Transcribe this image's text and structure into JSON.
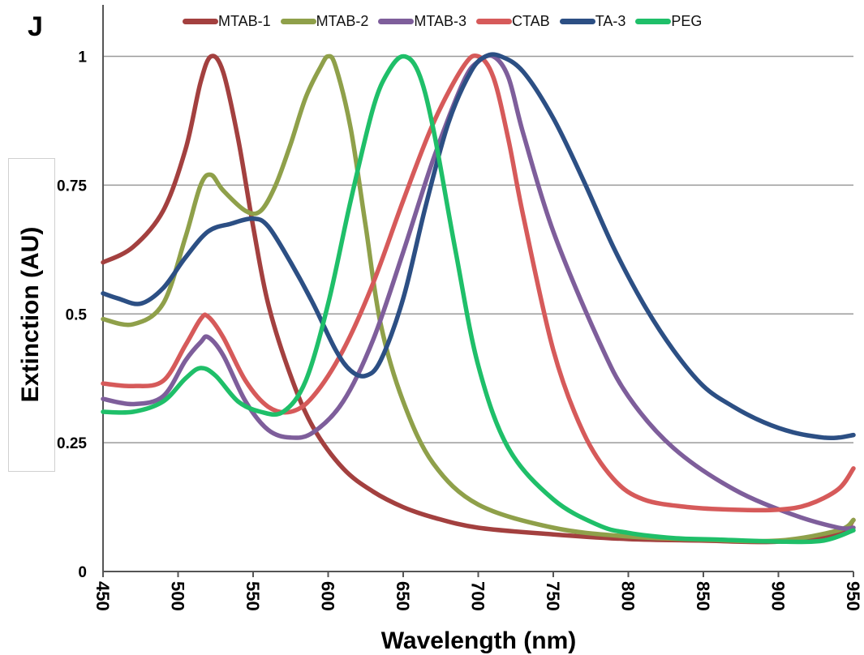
{
  "panel_letter": "J",
  "chart_data": {
    "type": "line",
    "title": "",
    "xlabel": "Wavelength (nm)",
    "ylabel": "Extinction (AU)",
    "xlim": [
      450,
      950
    ],
    "ylim": [
      0,
      1.1
    ],
    "x_ticks": [
      "450",
      "500",
      "550",
      "600",
      "650",
      "700",
      "750",
      "800",
      "850",
      "900",
      "950"
    ],
    "y_ticks": [
      "0",
      "0.25",
      "0.5",
      "0.75",
      "1"
    ],
    "grid": "horizontal",
    "legend_position": "top",
    "series": [
      {
        "name": "MTAB-1",
        "color": "#a3403f",
        "x": [
          450,
          470,
          490,
          505,
          515,
          522,
          530,
          540,
          550,
          560,
          575,
          590,
          610,
          630,
          650,
          670,
          700,
          750,
          800,
          850,
          900,
          940,
          950
        ],
        "y": [
          0.6,
          0.63,
          0.7,
          0.82,
          0.95,
          1.0,
          0.97,
          0.84,
          0.67,
          0.52,
          0.38,
          0.28,
          0.2,
          0.155,
          0.125,
          0.105,
          0.085,
          0.072,
          0.063,
          0.06,
          0.058,
          0.075,
          0.1
        ]
      },
      {
        "name": "MTAB-2",
        "color": "#8fa04a",
        "x": [
          450,
          470,
          490,
          505,
          515,
          522,
          530,
          545,
          555,
          565,
          575,
          585,
          595,
          600,
          605,
          615,
          625,
          635,
          650,
          670,
          700,
          750,
          800,
          850,
          900,
          940,
          950
        ],
        "y": [
          0.49,
          0.48,
          0.52,
          0.65,
          0.75,
          0.77,
          0.74,
          0.7,
          0.7,
          0.75,
          0.83,
          0.92,
          0.98,
          1.0,
          0.98,
          0.86,
          0.67,
          0.48,
          0.33,
          0.21,
          0.13,
          0.085,
          0.068,
          0.062,
          0.06,
          0.08,
          0.1
        ]
      },
      {
        "name": "MTAB-3",
        "color": "#7e5e9b",
        "x": [
          450,
          470,
          490,
          505,
          515,
          520,
          530,
          545,
          560,
          575,
          590,
          610,
          630,
          650,
          670,
          690,
          700,
          710,
          720,
          730,
          750,
          780,
          800,
          830,
          870,
          910,
          940,
          950
        ],
        "y": [
          0.335,
          0.325,
          0.34,
          0.41,
          0.445,
          0.455,
          0.42,
          0.33,
          0.275,
          0.26,
          0.27,
          0.33,
          0.45,
          0.62,
          0.8,
          0.95,
          0.99,
          1.0,
          0.96,
          0.85,
          0.66,
          0.45,
          0.34,
          0.24,
          0.16,
          0.11,
          0.085,
          0.085
        ]
      },
      {
        "name": "CTAB",
        "color": "#d65a5a",
        "x": [
          450,
          470,
          490,
          505,
          515,
          520,
          530,
          545,
          560,
          575,
          590,
          610,
          630,
          650,
          670,
          690,
          700,
          710,
          720,
          730,
          750,
          770,
          790,
          810,
          840,
          870,
          900,
          920,
          940,
          950
        ],
        "y": [
          0.365,
          0.36,
          0.37,
          0.44,
          0.49,
          0.495,
          0.455,
          0.37,
          0.32,
          0.31,
          0.34,
          0.43,
          0.56,
          0.72,
          0.87,
          0.98,
          1.0,
          0.96,
          0.84,
          0.69,
          0.43,
          0.27,
          0.18,
          0.14,
          0.125,
          0.12,
          0.12,
          0.13,
          0.16,
          0.2
        ]
      },
      {
        "name": "TA-3",
        "color": "#2c4f84",
        "x": [
          450,
          460,
          475,
          490,
          505,
          520,
          535,
          550,
          560,
          575,
          590,
          605,
          615,
          625,
          635,
          650,
          665,
          680,
          695,
          705,
          715,
          730,
          750,
          770,
          790,
          810,
          830,
          850,
          870,
          890,
          910,
          930,
          940,
          950
        ],
        "y": [
          0.54,
          0.53,
          0.52,
          0.55,
          0.61,
          0.66,
          0.675,
          0.685,
          0.67,
          0.6,
          0.52,
          0.43,
          0.39,
          0.38,
          0.41,
          0.53,
          0.71,
          0.87,
          0.97,
          1.0,
          1.0,
          0.97,
          0.88,
          0.76,
          0.63,
          0.52,
          0.43,
          0.36,
          0.32,
          0.29,
          0.27,
          0.26,
          0.26,
          0.265
        ]
      },
      {
        "name": "PEG",
        "color": "#1fbf69",
        "x": [
          450,
          470,
          490,
          505,
          515,
          525,
          540,
          555,
          570,
          585,
          600,
          615,
          630,
          640,
          650,
          660,
          670,
          685,
          700,
          720,
          750,
          780,
          800,
          830,
          860,
          900,
          930,
          950
        ],
        "y": [
          0.31,
          0.31,
          0.33,
          0.375,
          0.395,
          0.38,
          0.33,
          0.31,
          0.31,
          0.37,
          0.52,
          0.72,
          0.9,
          0.97,
          1.0,
          0.97,
          0.86,
          0.62,
          0.4,
          0.24,
          0.14,
          0.09,
          0.075,
          0.065,
          0.062,
          0.058,
          0.06,
          0.08
        ]
      }
    ]
  }
}
